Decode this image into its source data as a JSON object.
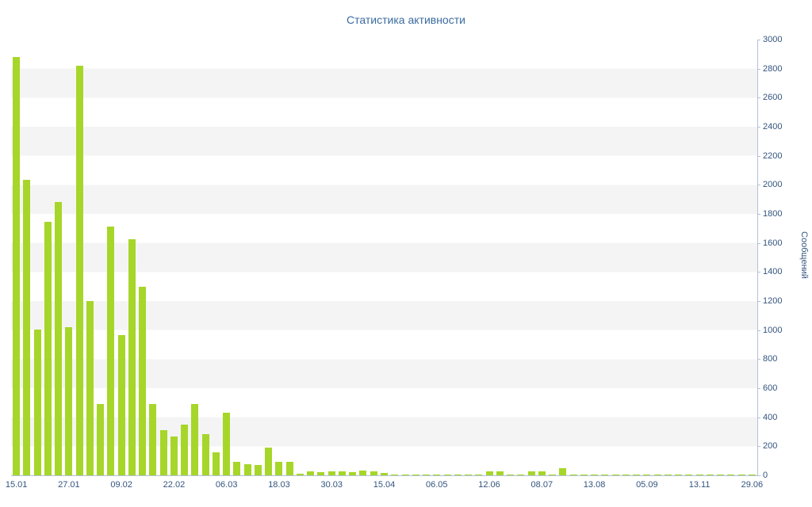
{
  "chart_data": {
    "type": "bar",
    "title": "Статистика активности",
    "ylabel": "Сообщений",
    "xlabel": "",
    "ylim": [
      0,
      3000
    ],
    "ytick_step": 200,
    "grid": "striped-horizontal-bands",
    "legend": "none",
    "x_tick_labels": [
      "15.01",
      "27.01",
      "09.02",
      "22.02",
      "06.03",
      "18.03",
      "30.03",
      "15.04",
      "06.05",
      "12.06",
      "08.07",
      "13.08",
      "05.09",
      "13.11",
      "29.06"
    ],
    "bars_per_label": 5,
    "values": [
      2880,
      2035,
      1005,
      1745,
      1880,
      1020,
      2820,
      1200,
      490,
      1715,
      965,
      1625,
      1300,
      490,
      310,
      265,
      350,
      490,
      285,
      160,
      430,
      95,
      75,
      70,
      190,
      95,
      95,
      10,
      25,
      20,
      25,
      30,
      20,
      35,
      25,
      15,
      8,
      5,
      8,
      5,
      8,
      5,
      5,
      8,
      5,
      30,
      25,
      5,
      8,
      30,
      25,
      8,
      50,
      5,
      5,
      8,
      5,
      5,
      5,
      5,
      3,
      3,
      3,
      3,
      3,
      3,
      3,
      3,
      3,
      3,
      3
    ],
    "colors": {
      "bar": "#a6d629",
      "title_text": "#3a6b9f",
      "axis_text": "#33547e",
      "axis_line": "#b3c2d6",
      "stripe": "#f4f4f4",
      "background": "#ffffff"
    }
  }
}
